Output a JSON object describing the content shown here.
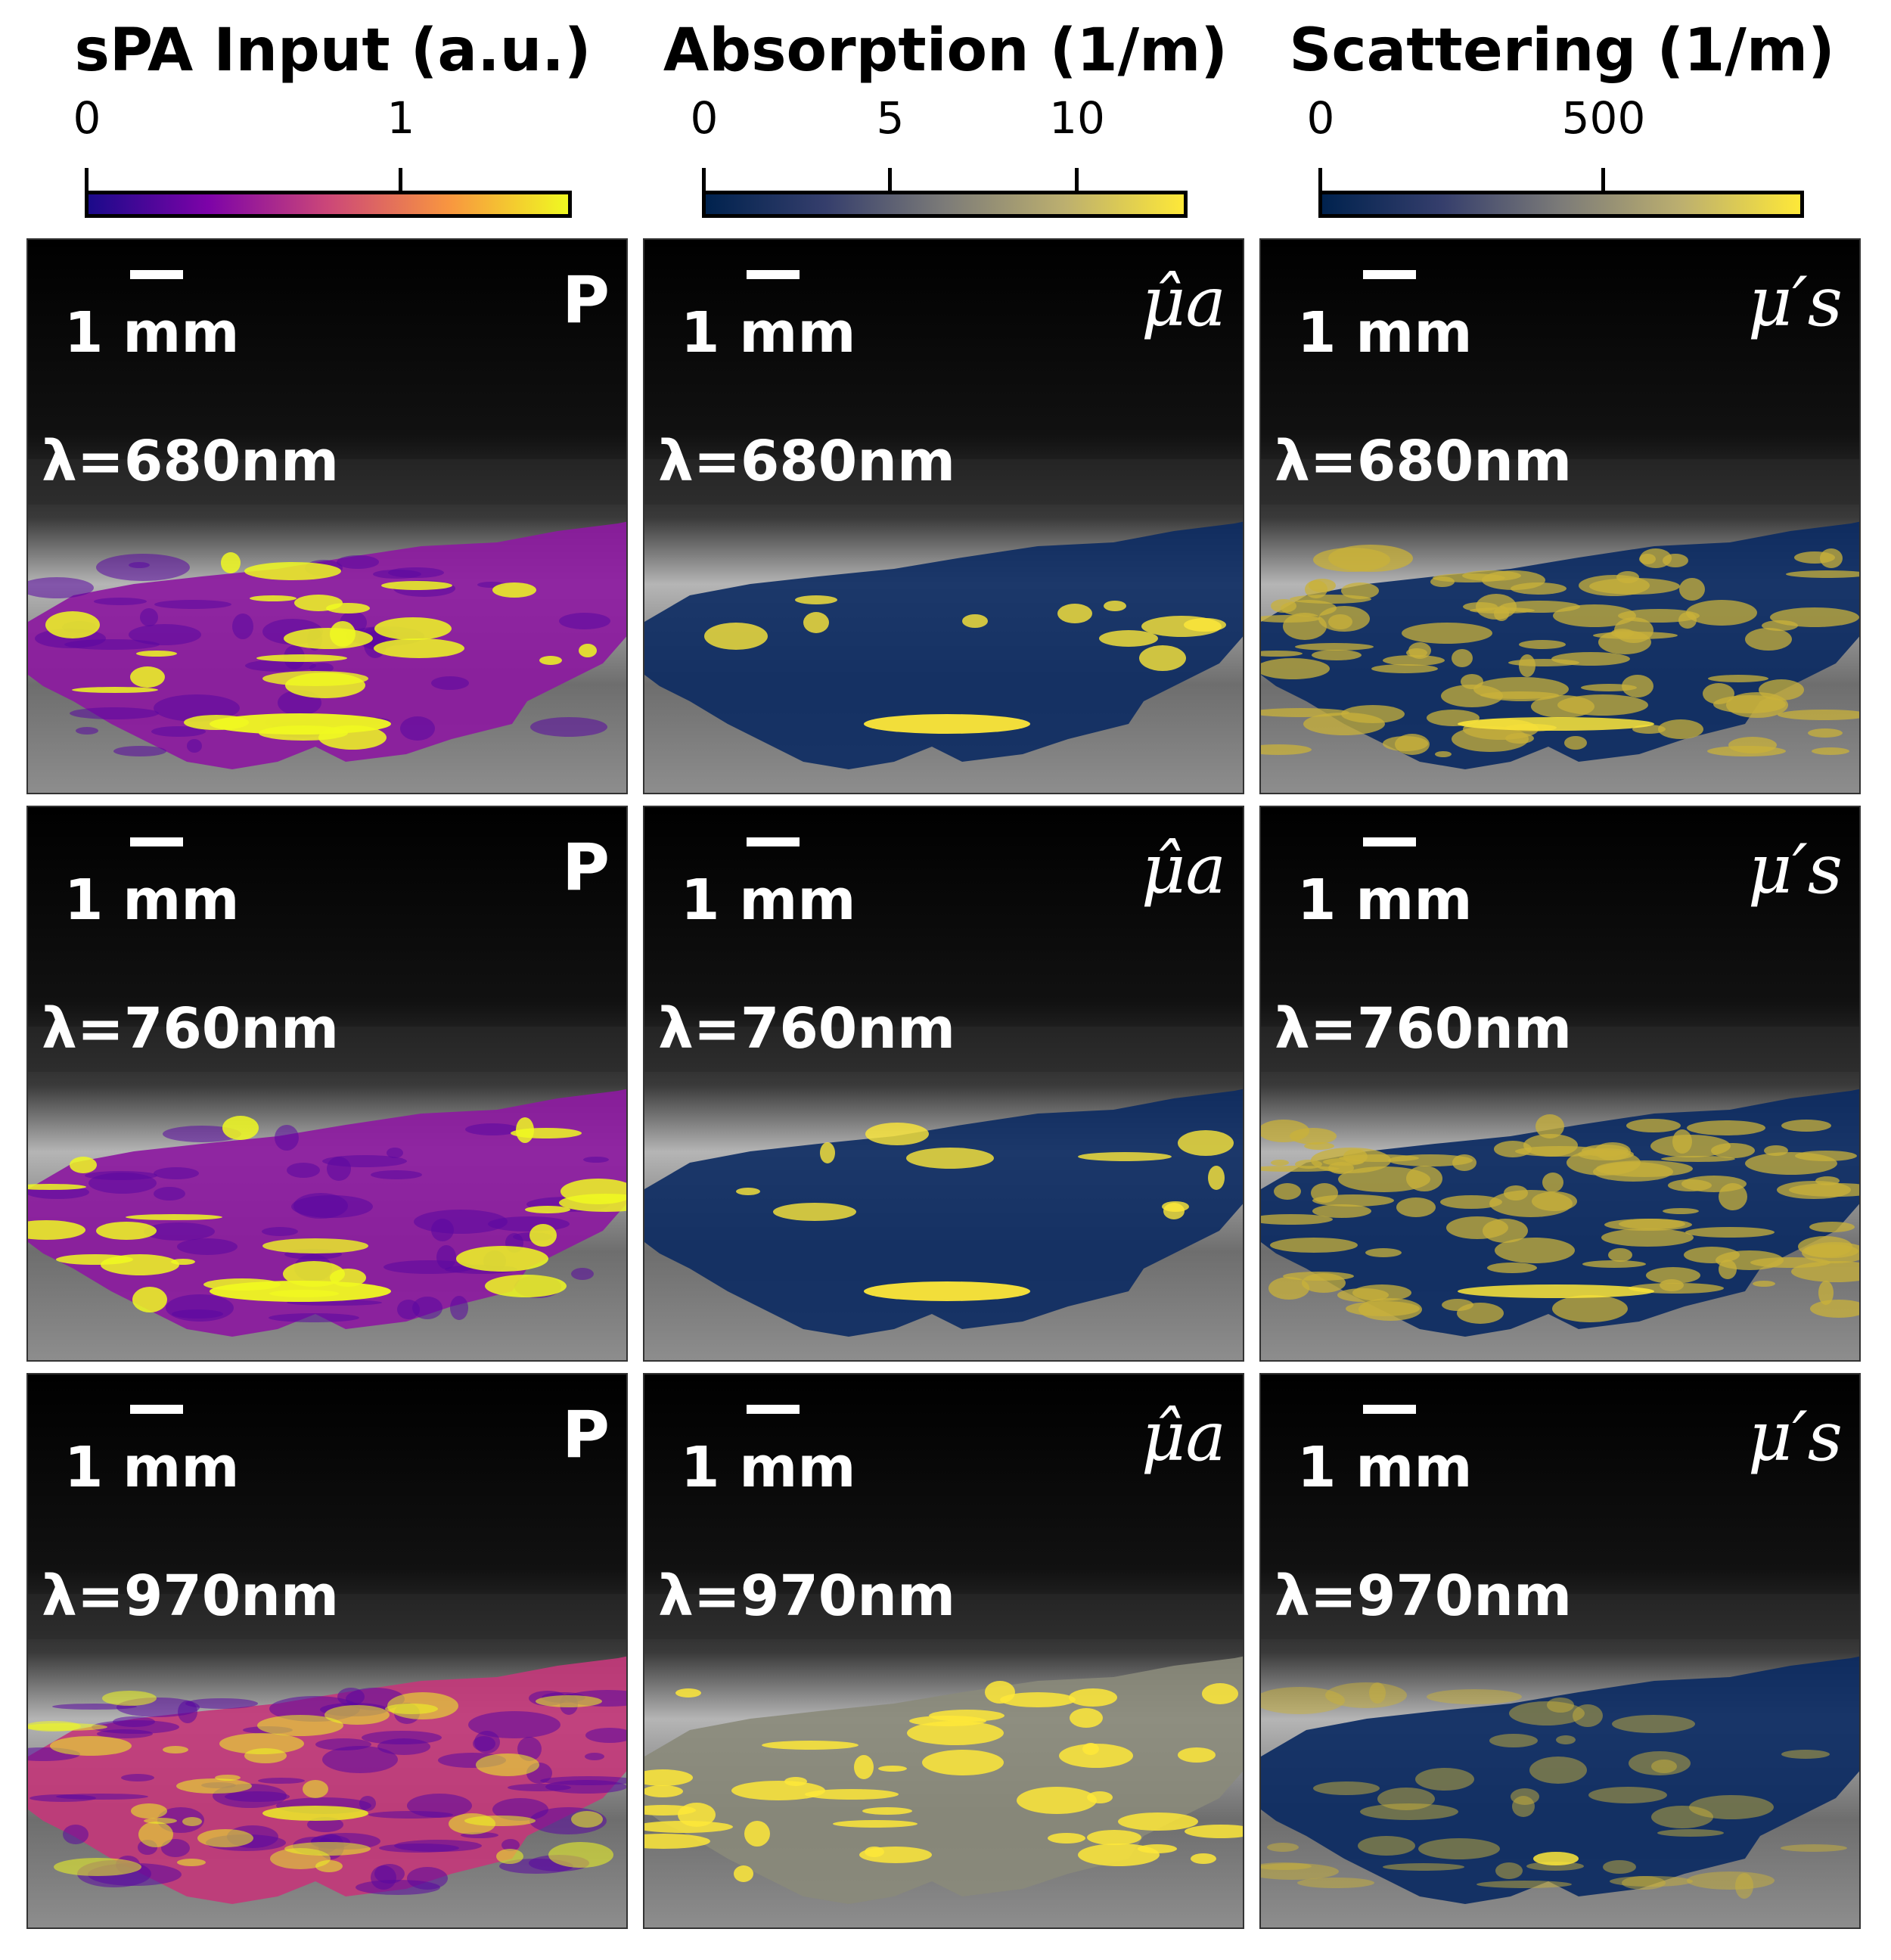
{
  "columns": [
    {
      "title": "sPA Input (a.u.)",
      "ticks": [
        "0",
        "1"
      ],
      "colormap": "plasma",
      "cb_colors": [
        "#1b0a8a",
        "#7d03a8",
        "#cc4778",
        "#f89540",
        "#f0f921"
      ]
    },
    {
      "title": "Absorption (1/m)",
      "ticks": [
        "0",
        "5",
        "10"
      ],
      "colormap": "cividis",
      "cb_colors": [
        "#00224e",
        "#353e6c",
        "#7c7b78",
        "#bcaf6f",
        "#fee838"
      ]
    },
    {
      "title": "Scattering (1/m)",
      "ticks": [
        "0",
        "500"
      ],
      "colormap": "cividis",
      "cb_colors": [
        "#00224e",
        "#353e6c",
        "#7c7b78",
        "#bcaf6f",
        "#fee838"
      ]
    }
  ],
  "scale_bar": "1 mm",
  "symbols": [
    "P",
    "μ̂a",
    "μ′s"
  ],
  "wavelengths": [
    "λ=680nm",
    "λ=760nm",
    "λ=970nm"
  ],
  "colors": {
    "ultrasound": "#808080",
    "background": "#000000",
    "text": "#ffffff"
  }
}
